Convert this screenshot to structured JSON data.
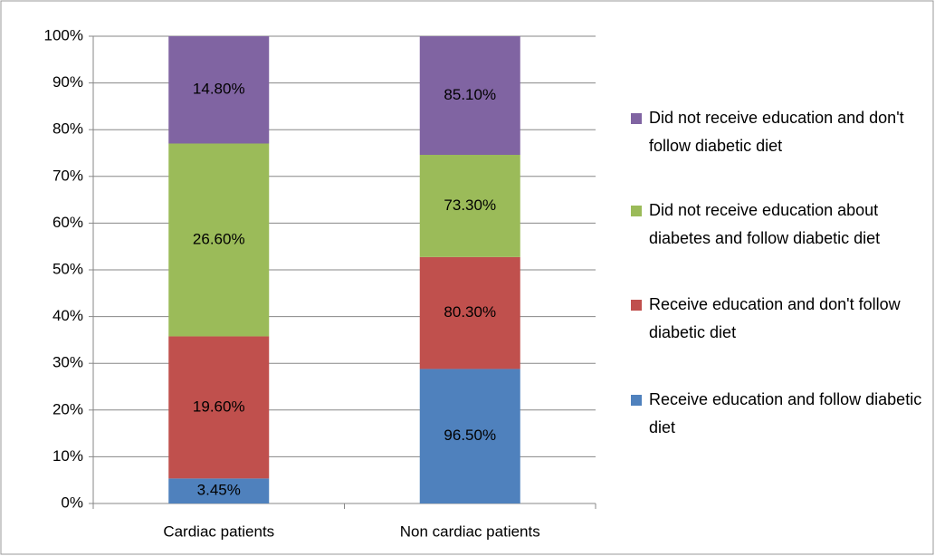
{
  "chart_data": {
    "type": "bar",
    "stacking": "percent",
    "categories": [
      "Cardiac patients",
      "Non cardiac patients"
    ],
    "series": [
      {
        "name": "Receive education and follow diabetic diet",
        "color": "#4f81bd",
        "values": [
          3.45,
          96.5
        ],
        "value_labels": [
          "3.45%",
          "96.50%"
        ]
      },
      {
        "name": "Receive education and don't follow diabetic diet",
        "color": "#c0504d",
        "values": [
          19.6,
          80.3
        ],
        "value_labels": [
          "19.60%",
          "80.30%"
        ]
      },
      {
        "name": "Did not receive education about diabetes and follow diabetic diet",
        "color": "#9bbb59",
        "values": [
          26.6,
          73.3
        ],
        "value_labels": [
          "26.60%",
          "73.30%"
        ]
      },
      {
        "name": "Did not receive education and don't follow diabetic diet",
        "color": "#8064a2",
        "values": [
          14.8,
          85.1
        ],
        "value_labels": [
          "14.80%",
          "85.10%"
        ]
      }
    ],
    "ylim": [
      0,
      100
    ],
    "yticks": [
      {
        "value": 0,
        "label": "0%"
      },
      {
        "value": 10,
        "label": "10%"
      },
      {
        "value": 20,
        "label": "20%"
      },
      {
        "value": 30,
        "label": "30%"
      },
      {
        "value": 40,
        "label": "40%"
      },
      {
        "value": 50,
        "label": "50%"
      },
      {
        "value": 60,
        "label": "60%"
      },
      {
        "value": 70,
        "label": "70%"
      },
      {
        "value": 80,
        "label": "80%"
      },
      {
        "value": 90,
        "label": "90%"
      },
      {
        "value": 100,
        "label": "100%"
      }
    ],
    "grid": true,
    "legend": "right"
  }
}
